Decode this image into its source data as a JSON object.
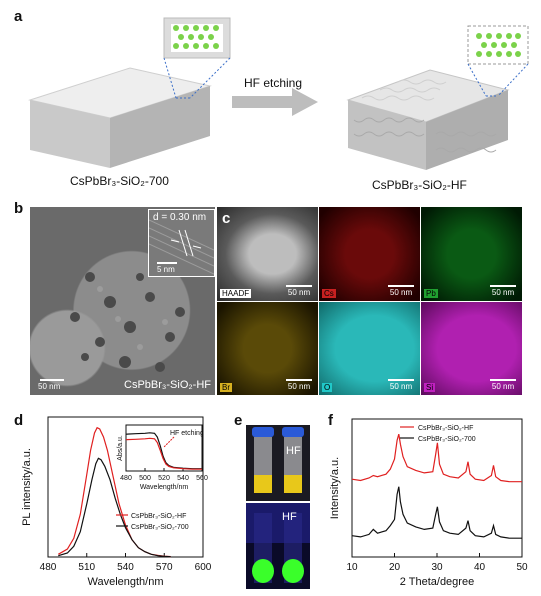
{
  "panel_a": {
    "label": "a",
    "left_caption": "CsPbBr₃-SiO₂-700",
    "right_caption": "CsPbBr₃-SiO₂-HF",
    "arrow_label": "HF etching"
  },
  "panel_b": {
    "label": "b",
    "inset_spacing": "d = 0.30 nm",
    "inset_scale": "5 nm",
    "scale": "50 nm",
    "sample": "CsPbBr₃-SiO₂-HF"
  },
  "panel_c": {
    "label": "c",
    "tiles": [
      {
        "name": "HAADF",
        "scale": "50 nm",
        "color": "#d0d0d0"
      },
      {
        "name": "Cs",
        "scale": "50 nm",
        "color": "#c82020"
      },
      {
        "name": "Pb",
        "scale": "50 nm",
        "color": "#20a030"
      },
      {
        "name": "Br",
        "scale": "50 nm",
        "color": "#d6b020"
      },
      {
        "name": "O",
        "scale": "50 nm",
        "color": "#20c8c8"
      },
      {
        "name": "Si",
        "scale": "50 nm",
        "color": "#c020c0"
      }
    ]
  },
  "panel_d": {
    "label": "d"
  },
  "panel_e": {
    "label": "e",
    "top_label": "HF",
    "bottom_label": "HF"
  },
  "panel_f": {
    "label": "f"
  },
  "chart_data": [
    {
      "type": "line",
      "xlabel": "Wavelength/nm",
      "ylabel": "PL intensity/a.u.",
      "xlim": [
        480,
        600
      ],
      "xticks": [
        480,
        510,
        540,
        570,
        600
      ],
      "series": [
        {
          "name": "CsPbBr₃-SiO₂-HF",
          "color": "#e02020",
          "x": [
            488,
            495,
            500,
            505,
            510,
            513,
            516,
            518,
            520,
            523,
            526,
            530,
            535,
            540,
            545,
            550,
            555,
            560,
            565,
            570,
            575
          ],
          "y": [
            0.02,
            0.06,
            0.14,
            0.32,
            0.62,
            0.8,
            0.93,
            0.97,
            0.96,
            0.9,
            0.8,
            0.62,
            0.4,
            0.24,
            0.13,
            0.07,
            0.04,
            0.02,
            0.012,
            0.006,
            0.003
          ]
        },
        {
          "name": "CsPbBr₃-SiO₂-700",
          "color": "#111111",
          "x": [
            488,
            495,
            500,
            505,
            510,
            514,
            517,
            519,
            521,
            524,
            528,
            532,
            536,
            540,
            545,
            550,
            555,
            560,
            565,
            570,
            575
          ],
          "y": [
            0.01,
            0.03,
            0.08,
            0.19,
            0.4,
            0.58,
            0.7,
            0.74,
            0.73,
            0.68,
            0.58,
            0.44,
            0.32,
            0.22,
            0.13,
            0.07,
            0.04,
            0.02,
            0.01,
            0.005,
            0.002
          ]
        }
      ],
      "inset": {
        "xlabel": "Wavelength/nm",
        "ylabel": "Abs/a.u.",
        "xlim": [
          480,
          560
        ],
        "xticks": [
          480,
          500,
          520,
          540,
          560
        ],
        "annotation": "HF etching",
        "series": [
          {
            "name": "CsPbBr₃-SiO₂-700",
            "color": "#111111",
            "x": [
              480,
              490,
              500,
              505,
              510,
              513,
              516,
              519,
              522,
              525,
              530,
              540,
              550,
              560
            ],
            "y": [
              0.8,
              0.81,
              0.82,
              0.83,
              0.82,
              0.74,
              0.55,
              0.32,
              0.18,
              0.12,
              0.08,
              0.06,
              0.05,
              0.05
            ]
          },
          {
            "name": "CsPbBr₃-SiO₂-HF",
            "color": "#e02020",
            "x": [
              480,
              490,
              500,
              505,
              510,
              513,
              516,
              519,
              522,
              525,
              530,
              540,
              550,
              560
            ],
            "y": [
              0.68,
              0.69,
              0.7,
              0.71,
              0.7,
              0.62,
              0.45,
              0.27,
              0.15,
              0.1,
              0.07,
              0.05,
              0.04,
              0.04
            ]
          }
        ]
      }
    },
    {
      "type": "line",
      "xlabel": "2 Theta/degree",
      "ylabel": "Intensity/a.u.",
      "xlim": [
        10,
        50
      ],
      "xticks": [
        10,
        20,
        30,
        40,
        50
      ],
      "series": [
        {
          "name": "CsPbBr₃-SiO₂-HF",
          "color": "#e02020",
          "x": [
            10,
            12,
            14,
            15,
            16,
            18,
            19,
            20,
            20.6,
            21,
            21.4,
            22,
            23,
            25,
            27,
            29,
            29.7,
            30.1,
            30.6,
            31.5,
            33,
            35,
            36.8,
            37.3,
            37.8,
            39,
            41,
            42.8,
            43.3,
            43.8,
            45,
            47,
            50
          ],
          "y": [
            0.62,
            0.61,
            0.63,
            0.65,
            0.64,
            0.66,
            0.7,
            0.78,
            0.93,
            0.98,
            0.9,
            0.8,
            0.72,
            0.69,
            0.67,
            0.68,
            0.82,
            0.91,
            0.74,
            0.66,
            0.64,
            0.63,
            0.68,
            0.76,
            0.66,
            0.62,
            0.61,
            0.65,
            0.73,
            0.64,
            0.61,
            0.6,
            0.6
          ]
        },
        {
          "name": "CsPbBr₃-SiO₂-700",
          "color": "#111111",
          "x": [
            10,
            12,
            14,
            15,
            16,
            18,
            19,
            20,
            20.6,
            21,
            21.4,
            22,
            23,
            25,
            27,
            29,
            29.7,
            30.1,
            30.6,
            31.5,
            33,
            35,
            36.8,
            37.3,
            37.8,
            39,
            41,
            42.8,
            43.3,
            43.8,
            45,
            47,
            50
          ],
          "y": [
            0.17,
            0.16,
            0.18,
            0.22,
            0.19,
            0.21,
            0.25,
            0.3,
            0.5,
            0.56,
            0.44,
            0.34,
            0.27,
            0.24,
            0.22,
            0.23,
            0.34,
            0.4,
            0.28,
            0.21,
            0.19,
            0.18,
            0.23,
            0.29,
            0.21,
            0.17,
            0.16,
            0.19,
            0.25,
            0.18,
            0.16,
            0.15,
            0.15
          ]
        }
      ]
    }
  ]
}
